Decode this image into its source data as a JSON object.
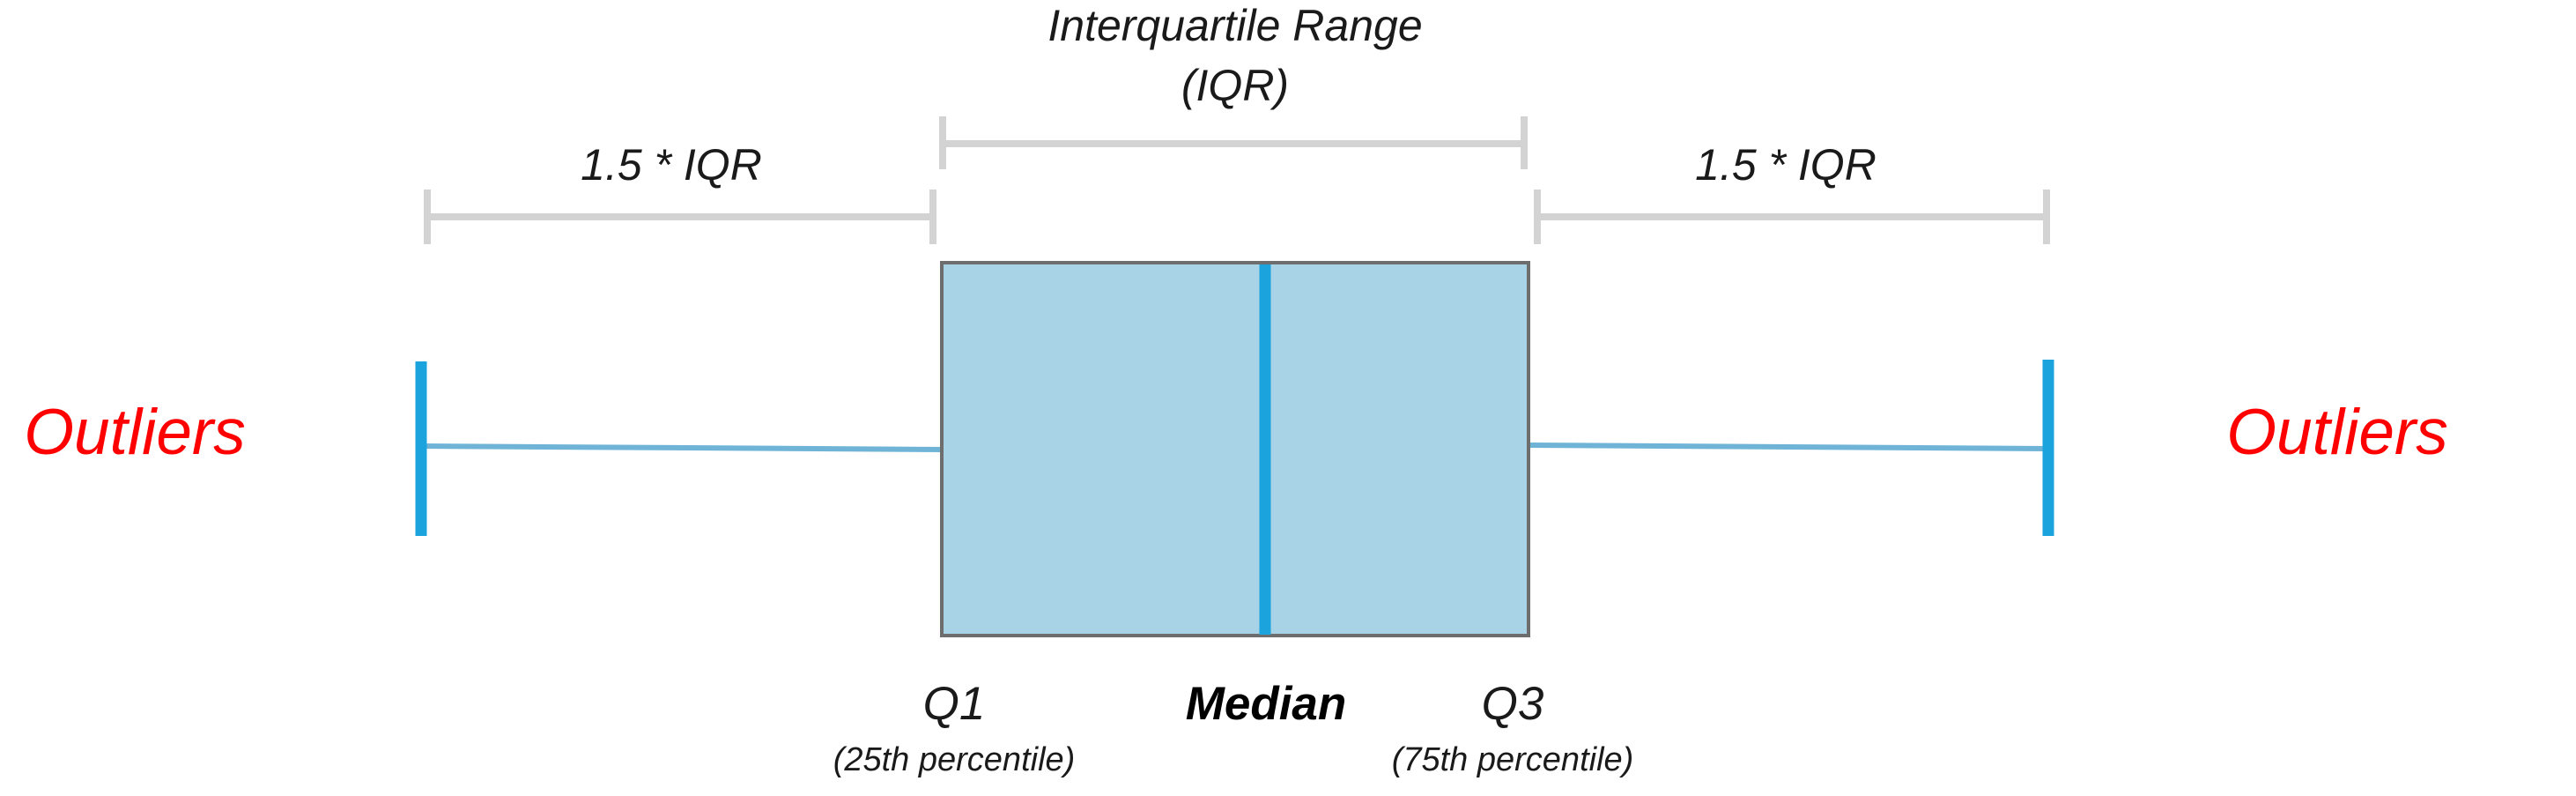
{
  "labels": {
    "iqr_title_line1": "Interquartile Range",
    "iqr_title_line2": "(IQR)",
    "left_whisker_label": "1.5 * IQR",
    "right_whisker_label": "1.5 * IQR",
    "left_outliers": "Outliers",
    "right_outliers": "Outliers",
    "q1": "Q1",
    "q1_sub": "(25th percentile)",
    "median": "Median",
    "q3": "Q3",
    "q3_sub": "(75th percentile)"
  },
  "colors": {
    "box_fill": "#a8d3e6",
    "box_stroke": "#6d6d6d",
    "median_line": "#1aa3dc",
    "whisker_line": "#6fb4d6",
    "whisker_cap": "#1aa3dc",
    "bracket": "#d3d3d3",
    "outliers_text": "#ff0000",
    "label_text": "#1a1a1a"
  }
}
